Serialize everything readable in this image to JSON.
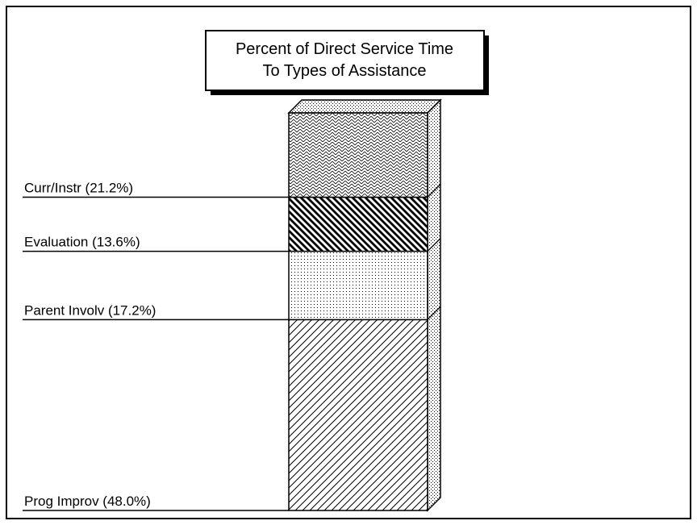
{
  "chart_data": {
    "type": "stacked_bar",
    "title": [
      "Percent of Direct Service Time",
      "To Types of Assistance"
    ],
    "categories": [
      "Prog Improv (48.0%)",
      "Parent Involv (17.2%)",
      "Evaluation (13.6%)",
      "Curr/Instr (21.2%)"
    ],
    "values": [
      48.0,
      17.2,
      13.6,
      21.2
    ],
    "color": "#000000"
  }
}
